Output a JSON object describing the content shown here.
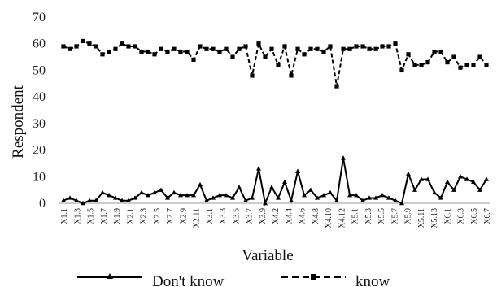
{
  "chart_data": {
    "type": "line",
    "xlabel": "Variable",
    "ylabel": "Respondent",
    "ylim": [
      0,
      70
    ],
    "yticks": [
      0,
      10,
      20,
      30,
      40,
      50,
      60,
      70
    ],
    "grid": false,
    "legend_position": "bottom",
    "x_tick_labels": [
      "X1.1",
      "X1.3",
      "X1.5",
      "X1.7",
      "X1.9",
      "X2.1",
      "X2.3",
      "X2.5",
      "X2.7",
      "X2.9",
      "X2.11",
      "X3.1",
      "X3.3",
      "X3.5",
      "X3.7",
      "X3.9",
      "X4.2",
      "X4.4",
      "X4.6",
      "X4.8",
      "X4.10",
      "X4.12",
      "X5.1",
      "X5.3",
      "X5.5",
      "X5.7",
      "X5.9",
      "X5.11",
      "X5.13",
      "X6.1",
      "X6.3",
      "X6.5",
      "X6.7"
    ],
    "series": [
      {
        "name": "Don't know",
        "color": "#000000",
        "dash": "solid",
        "marker": "triangle",
        "values": [
          1,
          2,
          1,
          0,
          1,
          1,
          4,
          3,
          2,
          1,
          1,
          2,
          4,
          3,
          4,
          5,
          2,
          4,
          3,
          3,
          3,
          7,
          1,
          2,
          3,
          3,
          2,
          6,
          1,
          2,
          13,
          0,
          6,
          2,
          8,
          1,
          12,
          3,
          5,
          2,
          3,
          4,
          1,
          17,
          3,
          3,
          1,
          2,
          2,
          3,
          2,
          1,
          0,
          11,
          5,
          9,
          9,
          4,
          2,
          8,
          5,
          10,
          9,
          8,
          5,
          9
        ]
      },
      {
        "name": "know",
        "color": "#000000",
        "dash": "dashed",
        "marker": "square",
        "values": [
          59,
          58,
          59,
          61,
          60,
          59,
          56,
          57,
          58,
          60,
          59,
          59,
          57,
          57,
          56,
          58,
          57,
          58,
          57,
          57,
          54,
          59,
          58,
          58,
          57,
          58,
          55,
          58,
          59,
          48,
          60,
          55,
          58,
          52,
          59,
          48,
          58,
          56,
          58,
          58,
          57,
          59,
          44,
          58,
          58,
          59,
          59,
          58,
          58,
          59,
          59,
          60,
          50,
          56,
          52,
          52,
          53,
          57,
          57,
          53,
          55,
          51,
          52,
          52,
          55,
          52
        ]
      }
    ]
  }
}
